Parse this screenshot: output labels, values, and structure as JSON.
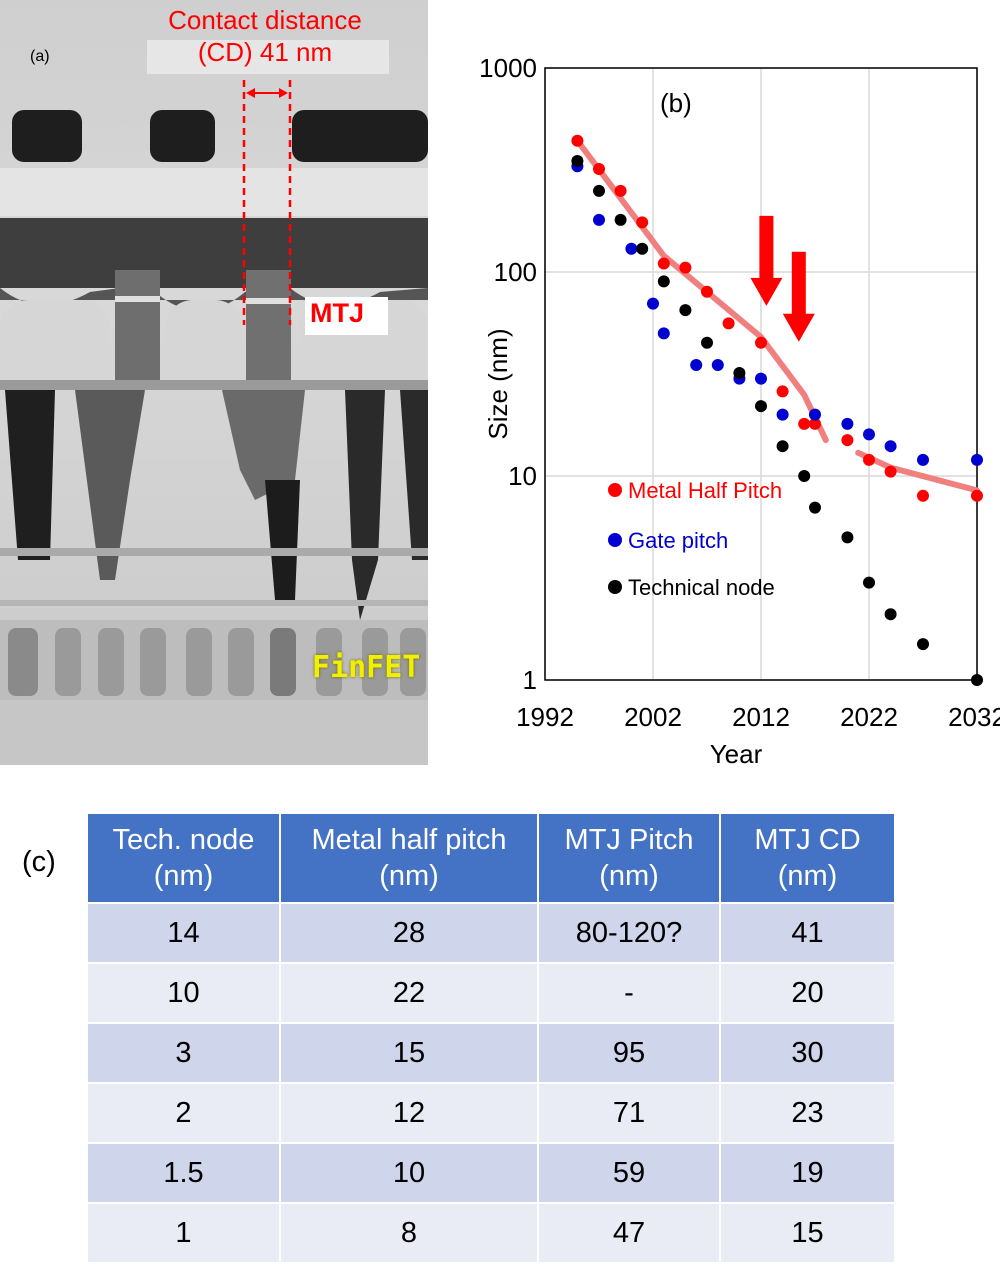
{
  "panel_a": {
    "label": "(a)",
    "annotation_line1": "Contact distance",
    "annotation_line2": "(CD) 41 nm",
    "mtj_label": "MTJ",
    "finfet_label": "FinFET"
  },
  "panel_b": {
    "label": "(b)"
  },
  "panel_c": {
    "label": "(c)"
  },
  "colors": {
    "metal": "#ff0000",
    "gate": "#0000d0",
    "node": "#000000",
    "trend": "#f08080",
    "header_bg": "#4472c4",
    "row_odd": "#cfd5ea",
    "row_even": "#e9ebf5"
  },
  "chart_data": [
    {
      "type": "scatter",
      "title": "",
      "xlabel": "Year",
      "ylabel": "Size (nm)",
      "xlim": [
        1992,
        2032
      ],
      "ylim": [
        1,
        1000
      ],
      "yscale": "log",
      "xticks": [
        "1992",
        "2002",
        "2012",
        "2022",
        "2032"
      ],
      "yticks": [
        "1",
        "10",
        "100",
        "1000"
      ],
      "grid": true,
      "legend_position": "lower-left",
      "series": [
        {
          "name": "Metal Half Pitch",
          "color": "#ff0000",
          "points": [
            [
              1995,
              440
            ],
            [
              1997,
              320
            ],
            [
              1999,
              250
            ],
            [
              2001,
              175
            ],
            [
              2003,
              110
            ],
            [
              2005,
              105
            ],
            [
              2007,
              80
            ],
            [
              2009,
              56
            ],
            [
              2012,
              45
            ],
            [
              2014,
              26
            ],
            [
              2016,
              18
            ],
            [
              2017,
              18
            ],
            [
              2020,
              15
            ],
            [
              2022,
              12
            ],
            [
              2024,
              10.5
            ],
            [
              2027,
              8
            ],
            [
              2032,
              8
            ]
          ]
        },
        {
          "name": "Gate pitch",
          "color": "#0000d0",
          "points": [
            [
              1995,
              330
            ],
            [
              1997,
              180
            ],
            [
              2000,
              130
            ],
            [
              2002,
              70
            ],
            [
              2003,
              50
            ],
            [
              2006,
              35
            ],
            [
              2008,
              35
            ],
            [
              2010,
              30
            ],
            [
              2012,
              30
            ],
            [
              2014,
              20
            ],
            [
              2017,
              20
            ],
            [
              2020,
              18
            ],
            [
              2022,
              16
            ],
            [
              2024,
              14
            ],
            [
              2027,
              12
            ],
            [
              2032,
              12
            ]
          ]
        },
        {
          "name": "Technical node",
          "color": "#000000",
          "points": [
            [
              1995,
              350
            ],
            [
              1997,
              250
            ],
            [
              1999,
              180
            ],
            [
              2001,
              130
            ],
            [
              2003,
              90
            ],
            [
              2005,
              65
            ],
            [
              2007,
              45
            ],
            [
              2010,
              32
            ],
            [
              2012,
              22
            ],
            [
              2014,
              14
            ],
            [
              2016,
              10
            ],
            [
              2017,
              7
            ],
            [
              2020,
              5
            ],
            [
              2022,
              3
            ],
            [
              2024,
              2.1
            ],
            [
              2027,
              1.5
            ],
            [
              2032,
              1
            ]
          ]
        }
      ],
      "trend_line": {
        "color": "#f08080",
        "segments": [
          [
            [
              1995,
              440
            ],
            [
              2003,
              120
            ],
            [
              2012,
              48
            ],
            [
              2016,
              25
            ],
            [
              2018,
              15
            ]
          ],
          [
            [
              2021,
              13
            ],
            [
              2024,
              11
            ],
            [
              2032,
              8.5
            ]
          ]
        ]
      },
      "arrows": [
        [
          2012.5,
          120
        ],
        [
          2015.5,
          80
        ]
      ]
    },
    {
      "type": "table",
      "columns": [
        "Tech. node\n(nm)",
        "Metal half pitch\n(nm)",
        "MTJ Pitch\n(nm)",
        "MTJ CD\n(nm)"
      ],
      "rows": [
        [
          "14",
          "28",
          "80-120?",
          "41"
        ],
        [
          "10",
          "22",
          "-",
          "20"
        ],
        [
          "3",
          "15",
          "95",
          "30"
        ],
        [
          "2",
          "12",
          "71",
          "23"
        ],
        [
          "1.5",
          "10",
          "59",
          "19"
        ],
        [
          "1",
          "8",
          "47",
          "15"
        ]
      ]
    }
  ]
}
